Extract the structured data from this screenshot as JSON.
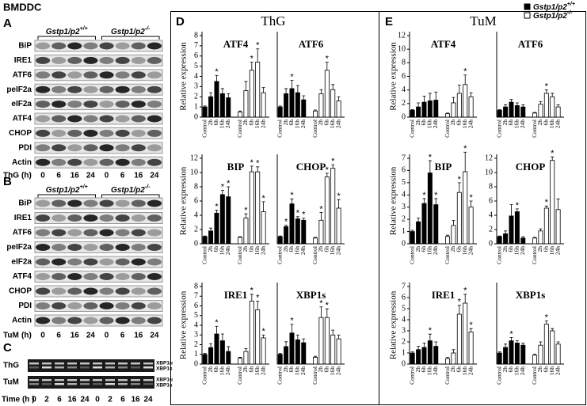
{
  "header": "BMDDC",
  "genotypes": [
    {
      "name": "Gstp1/p2",
      "sup": "+/+"
    },
    {
      "name": "Gstp1/p2",
      "sup": "-/-"
    }
  ],
  "blot_a": {
    "letter": "A",
    "rows": [
      "BiP",
      "IRE1",
      "ATF6",
      "peIF2a",
      "eIF2a",
      "ATF4",
      "CHOP",
      "PDI",
      "Actin"
    ],
    "treatment": "ThG",
    "unit": "(h)",
    "lanes": [
      "0",
      "6",
      "16",
      "24",
      "0",
      "6",
      "16",
      "24"
    ]
  },
  "blot_b": {
    "letter": "B",
    "rows": [
      "BiP",
      "IRE1",
      "ATF6",
      "peIF2a",
      "eIF2a",
      "ATF4",
      "CHOP",
      "PDI",
      "Actin"
    ],
    "treatment": "TuM",
    "unit": "(h)",
    "lanes": [
      "0",
      "6",
      "16",
      "24",
      "0",
      "6",
      "16",
      "24"
    ]
  },
  "blot_c": {
    "letter": "C",
    "rows": [
      "ThG",
      "TuM"
    ],
    "bands": [
      "XBP1u",
      "XBP1s"
    ],
    "time": "Time (h )",
    "lanes": [
      "0",
      "2",
      "6",
      "16",
      "24",
      "0",
      "2",
      "6",
      "16",
      "24"
    ]
  },
  "panel_d": {
    "letter": "D",
    "title": "ThG"
  },
  "panel_e": {
    "letter": "E",
    "title": "TuM"
  },
  "significance_mark": "*",
  "chart_data": [
    {
      "type": "bar",
      "title": "ATF4",
      "y_label": "Relative expression",
      "categories": [
        "Control",
        "2h",
        "6h",
        "16h",
        "24h"
      ],
      "ylim": [
        0,
        8
      ],
      "yticks": [
        0,
        1,
        2,
        3,
        4,
        5,
        6,
        7,
        8
      ],
      "series": [
        {
          "color": "#000000",
          "values": [
            1,
            2.0,
            3.5,
            2.3,
            1.9
          ],
          "errors": [
            0.1,
            0.4,
            0.6,
            0.5,
            0.4
          ],
          "significant": [
            2
          ]
        },
        {
          "color": "#ffffff",
          "values": [
            0.5,
            2.6,
            4.6,
            5.4,
            2.4
          ],
          "errors": [
            0.1,
            0.9,
            0.8,
            1.3,
            0.5
          ],
          "significant": [
            2,
            3
          ]
        }
      ]
    },
    {
      "type": "bar",
      "title": "ATF6",
      "categories": [
        "Control",
        "2h",
        "6h",
        "16h",
        "24h"
      ],
      "ylim": [
        0,
        8
      ],
      "series": [
        {
          "color": "#000000",
          "values": [
            1,
            2.3,
            2.8,
            2.4,
            1.7
          ],
          "errors": [
            0.1,
            0.5,
            0.8,
            0.7,
            0.4
          ],
          "significant": [
            2
          ]
        },
        {
          "color": "#ffffff",
          "values": [
            0.6,
            2.3,
            4.6,
            2.7,
            1.6
          ],
          "errors": [
            0.1,
            0.4,
            0.8,
            0.5,
            0.4
          ],
          "significant": [
            2
          ]
        }
      ]
    },
    {
      "type": "bar",
      "title": "BIP",
      "y_label": "Relative expression",
      "categories": [
        "Control",
        "2h",
        "6h",
        "16h",
        "24h"
      ],
      "ylim": [
        0,
        12
      ],
      "yticks": [
        0,
        2,
        4,
        6,
        8,
        10,
        12
      ],
      "series": [
        {
          "color": "#000000",
          "values": [
            1,
            1.8,
            4.3,
            6.9,
            6.6
          ],
          "errors": [
            0.1,
            0.4,
            0.4,
            0.6,
            1.4
          ],
          "significant": [
            2,
            3,
            4
          ]
        },
        {
          "color": "#ffffff",
          "values": [
            0.9,
            3.6,
            10.1,
            10.1,
            4.5
          ],
          "errors": [
            0.1,
            0.6,
            0.8,
            0.7,
            1.4
          ],
          "significant": [
            1,
            2,
            3,
            4
          ]
        }
      ]
    },
    {
      "type": "bar",
      "title": "CHOP",
      "categories": [
        "Control",
        "2h",
        "6h",
        "16h",
        "24h"
      ],
      "ylim": [
        0,
        12
      ],
      "series": [
        {
          "color": "#000000",
          "values": [
            1,
            2.4,
            5.6,
            3.5,
            3.3
          ],
          "errors": [
            0.1,
            0.2,
            0.7,
            0.3,
            0.3
          ],
          "significant": [
            1,
            2,
            3,
            4
          ]
        },
        {
          "color": "#ffffff",
          "values": [
            0.8,
            3.3,
            9.4,
            10.6,
            5.0
          ],
          "errors": [
            0.1,
            1.1,
            0.5,
            0.5,
            1.2
          ],
          "significant": [
            1,
            2,
            3,
            4
          ]
        }
      ]
    },
    {
      "type": "bar",
      "title": "IRE1",
      "y_label": "Relative expression",
      "categories": [
        "Control",
        "2h",
        "6h",
        "16h",
        "24h"
      ],
      "ylim": [
        0,
        8
      ],
      "yticks": [
        0,
        1,
        2,
        3,
        4,
        5,
        6,
        7,
        8
      ],
      "series": [
        {
          "color": "#000000",
          "values": [
            1,
            1.7,
            3.1,
            2.4,
            1.3
          ],
          "errors": [
            0.1,
            0.4,
            0.8,
            0.7,
            0.5
          ],
          "significant": [
            2
          ]
        },
        {
          "color": "#ffffff",
          "values": [
            0.6,
            1.3,
            6.5,
            5.6,
            2.7
          ],
          "errors": [
            0.1,
            0.3,
            0.7,
            0.9,
            0.3
          ],
          "significant": [
            2,
            3,
            4
          ]
        }
      ]
    },
    {
      "type": "bar",
      "title": "XBP1s",
      "categories": [
        "Control",
        "2h",
        "6h",
        "16h",
        "24h"
      ],
      "ylim": [
        0,
        8
      ],
      "series": [
        {
          "color": "#000000",
          "values": [
            1,
            1.8,
            3.2,
            2.5,
            2.2
          ],
          "errors": [
            0.1,
            0.5,
            0.9,
            0.5,
            0.4
          ],
          "significant": [
            2
          ]
        },
        {
          "color": "#ffffff",
          "values": [
            0.7,
            4.8,
            4.8,
            3.0,
            2.6
          ],
          "errors": [
            0.1,
            1.1,
            0.9,
            0.5,
            0.4
          ],
          "significant": [
            1,
            2
          ]
        }
      ]
    },
    {
      "type": "bar",
      "title": "ATF4",
      "y_label": "Relative expression",
      "categories": [
        "Control",
        "2h",
        "6h",
        "16h",
        "24h"
      ],
      "ylim": [
        0,
        12
      ],
      "yticks": [
        0,
        2,
        4,
        6,
        8,
        10,
        12
      ],
      "series": [
        {
          "color": "#000000",
          "values": [
            1,
            1.5,
            2.2,
            2.4,
            2.5
          ],
          "errors": [
            0.1,
            0.6,
            0.9,
            1.1,
            1.2
          ],
          "significant": []
        },
        {
          "color": "#ffffff",
          "values": [
            0.5,
            2.1,
            3.5,
            4.8,
            3.0
          ],
          "errors": [
            0.1,
            0.8,
            1.2,
            1.4,
            0.6
          ],
          "significant": [
            3
          ]
        }
      ]
    },
    {
      "type": "bar",
      "title": "ATF6",
      "categories": [
        "Control",
        "2h",
        "6h",
        "16h",
        "24h"
      ],
      "ylim": [
        0,
        12
      ],
      "series": [
        {
          "color": "#000000",
          "values": [
            1,
            1.5,
            2.2,
            1.7,
            1.5
          ],
          "errors": [
            0.1,
            0.3,
            0.4,
            0.4,
            0.3
          ],
          "significant": []
        },
        {
          "color": "#ffffff",
          "values": [
            0.6,
            1.9,
            3.5,
            3.0,
            1.5
          ],
          "errors": [
            0.1,
            0.4,
            0.5,
            0.5,
            0.3
          ],
          "significant": [
            2
          ]
        }
      ]
    },
    {
      "type": "bar",
      "title": "BIP",
      "y_label": "Relative expression",
      "categories": [
        "Control",
        "2h",
        "6h",
        "16h",
        "24h"
      ],
      "ylim": [
        0,
        7
      ],
      "yticks": [
        0,
        1,
        2,
        3,
        4,
        5,
        6,
        7
      ],
      "series": [
        {
          "color": "#000000",
          "values": [
            1,
            1.8,
            3.3,
            5.8,
            3.2
          ],
          "errors": [
            0.1,
            0.3,
            0.4,
            1.0,
            0.5
          ],
          "significant": [
            2,
            3,
            4
          ]
        },
        {
          "color": "#ffffff",
          "values": [
            0.6,
            1.5,
            4.2,
            5.9,
            3.0
          ],
          "errors": [
            0.1,
            0.4,
            0.8,
            1.6,
            0.5
          ],
          "significant": [
            2,
            3,
            4
          ]
        }
      ]
    },
    {
      "type": "bar",
      "title": "CHOP",
      "categories": [
        "Control",
        "2h",
        "6h",
        "16h",
        "24h"
      ],
      "ylim": [
        0,
        12
      ],
      "yticks": [
        0,
        2,
        4,
        6,
        8,
        10,
        12
      ],
      "series": [
        {
          "color": "#000000",
          "values": [
            1,
            1.4,
            3.9,
            4.5,
            0.8
          ],
          "errors": [
            0.1,
            0.4,
            1.6,
            0.4,
            0.2
          ],
          "significant": [
            3
          ]
        },
        {
          "color": "#ffffff",
          "values": [
            0.8,
            1.8,
            5.0,
            11.7,
            4.8
          ],
          "errors": [
            0.1,
            0.3,
            0.3,
            0.5,
            1.5
          ],
          "significant": [
            2,
            3
          ]
        }
      ]
    },
    {
      "type": "bar",
      "title": "IRE1",
      "y_label": "Relative expression",
      "categories": [
        "Control",
        "2h",
        "6h",
        "16h",
        "24h"
      ],
      "ylim": [
        0,
        7
      ],
      "yticks": [
        0,
        1,
        2,
        3,
        4,
        5,
        6,
        7
      ],
      "series": [
        {
          "color": "#000000",
          "values": [
            1,
            1.3,
            1.5,
            2.1,
            1.6
          ],
          "errors": [
            0.1,
            0.3,
            0.4,
            0.6,
            0.4
          ],
          "significant": [
            3
          ]
        },
        {
          "color": "#ffffff",
          "values": [
            0.5,
            1.0,
            4.5,
            5.5,
            2.9
          ],
          "errors": [
            0.1,
            0.3,
            0.8,
            0.8,
            0.3
          ],
          "significant": [
            2,
            3,
            4
          ]
        }
      ]
    },
    {
      "type": "bar",
      "title": "XBP1s",
      "categories": [
        "Control",
        "2h",
        "6h",
        "16h",
        "24h"
      ],
      "ylim": [
        0,
        7
      ],
      "series": [
        {
          "color": "#000000",
          "values": [
            1,
            1.5,
            2.1,
            1.9,
            1.7
          ],
          "errors": [
            0.1,
            0.3,
            0.3,
            0.2,
            0.2
          ],
          "significant": [
            2
          ]
        },
        {
          "color": "#ffffff",
          "values": [
            0.8,
            1.7,
            3.6,
            3.0,
            1.8
          ],
          "errors": [
            0.1,
            0.3,
            0.3,
            0.2,
            0.2
          ],
          "significant": [
            2
          ]
        }
      ]
    }
  ]
}
